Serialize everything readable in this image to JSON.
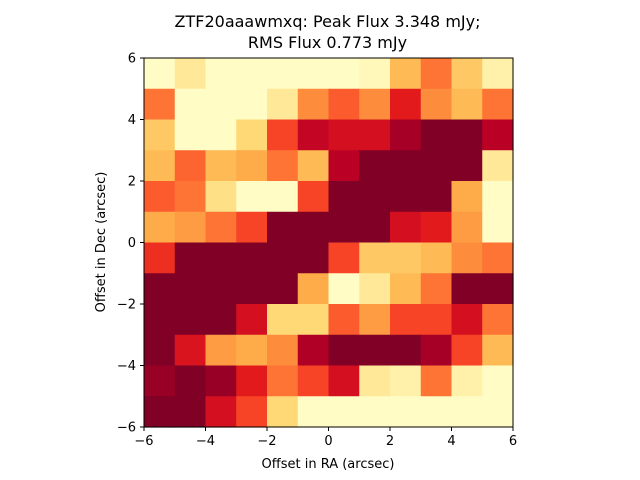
{
  "chart_data": {
    "type": "heatmap",
    "title_line1": "ZTF20aaawmxq: Peak Flux 3.348 mJy;",
    "title_line2": "RMS Flux 0.773 mJy",
    "xlabel": "Offset in RA (arcsec)",
    "ylabel": "Offset in Dec (arcsec)",
    "xlim": [
      -6,
      6
    ],
    "ylim": [
      -6,
      6
    ],
    "xticks": [
      "-6",
      "-4",
      "-2",
      "0",
      "2",
      "4",
      "6"
    ],
    "yticks": [
      "-6",
      "-4",
      "-2",
      "0",
      "2",
      "4",
      "6"
    ],
    "colormap": [
      "#ffffcc",
      "#ffeda0",
      "#fed976",
      "#feb24c",
      "#fd8d3c",
      "#fc4e2a",
      "#e31a1c",
      "#bd0026",
      "#800026"
    ],
    "value_range": [
      0,
      1
    ],
    "grid": false,
    "rows_top_to_bottom": [
      [
        0.02,
        0.15,
        0.02,
        0.02,
        0.02,
        0.02,
        0.02,
        0.05,
        0.35,
        0.55,
        0.3,
        0.1
      ],
      [
        0.55,
        0.02,
        0.02,
        0.02,
        0.15,
        0.5,
        0.6,
        0.5,
        0.75,
        0.5,
        0.35,
        0.55
      ],
      [
        0.3,
        0.02,
        0.02,
        0.25,
        0.65,
        0.85,
        0.8,
        0.8,
        0.92,
        1.0,
        1.0,
        0.88
      ],
      [
        0.35,
        0.58,
        0.35,
        0.4,
        0.55,
        0.35,
        0.88,
        1.0,
        1.0,
        1.0,
        1.0,
        0.15
      ],
      [
        0.6,
        0.55,
        0.2,
        0.02,
        0.02,
        0.65,
        1.0,
        1.0,
        1.0,
        1.0,
        0.4,
        0.02
      ],
      [
        0.4,
        0.45,
        0.55,
        0.65,
        1.0,
        1.0,
        1.0,
        1.0,
        0.8,
        0.75,
        0.45,
        0.02
      ],
      [
        0.7,
        1.0,
        1.0,
        1.0,
        1.0,
        1.0,
        0.65,
        0.3,
        0.3,
        0.35,
        0.5,
        0.55
      ],
      [
        1.0,
        1.0,
        1.0,
        1.0,
        1.0,
        0.4,
        0.02,
        0.15,
        0.35,
        0.55,
        1.0,
        1.0
      ],
      [
        1.0,
        1.0,
        1.0,
        0.8,
        0.25,
        0.25,
        0.6,
        0.45,
        0.65,
        0.65,
        0.8,
        0.55
      ],
      [
        1.0,
        0.78,
        0.45,
        0.4,
        0.5,
        0.9,
        1.0,
        1.0,
        1.0,
        0.92,
        0.65,
        0.35
      ],
      [
        0.95,
        1.0,
        0.95,
        0.75,
        0.55,
        0.65,
        0.8,
        0.15,
        0.1,
        0.55,
        0.1,
        0.02
      ],
      [
        1.0,
        1.0,
        0.8,
        0.65,
        0.25,
        0.02,
        0.02,
        0.02,
        0.02,
        0.02,
        0.02,
        0.02
      ]
    ]
  }
}
